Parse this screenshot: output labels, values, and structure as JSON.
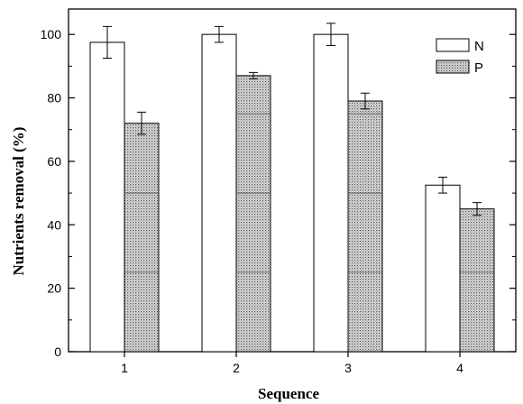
{
  "chart_data": {
    "type": "bar",
    "categories": [
      "1",
      "2",
      "3",
      "4"
    ],
    "series": [
      {
        "name": "N",
        "values": [
          97.5,
          100,
          100,
          52.5
        ],
        "errors": [
          5,
          2.5,
          3.5,
          2.5
        ],
        "fill": "plain-white"
      },
      {
        "name": "P",
        "values": [
          72,
          87,
          79,
          45
        ],
        "errors": [
          3.5,
          1,
          2.5,
          2
        ],
        "fill": "dotted-gray"
      }
    ],
    "xlabel": "Sequence",
    "ylabel": "Nutrients removal (%)",
    "ylim": [
      0,
      108
    ],
    "yticks": [
      0,
      20,
      40,
      60,
      80,
      100
    ],
    "legend_position": "top-right",
    "grid": false,
    "colors": {
      "axis": "#000000",
      "n_fill": "#ffffff",
      "p_fill": "#bdbdbd"
    }
  }
}
